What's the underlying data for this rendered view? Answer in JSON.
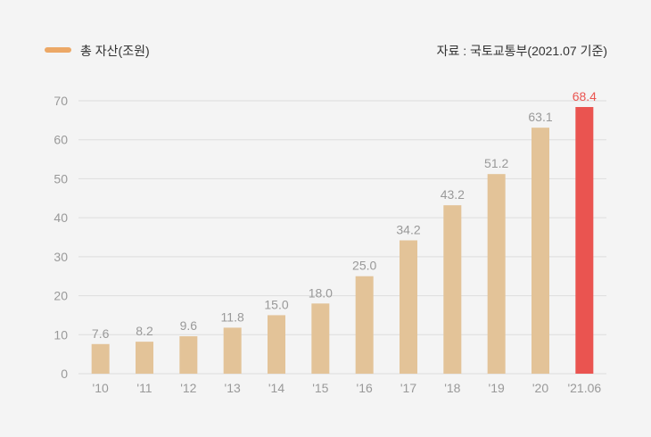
{
  "legend": {
    "label": "총 자산(조원)"
  },
  "source": "자료 : 국토교통부(2021.07 기준)",
  "colors": {
    "bar": "#e3c398",
    "highlight": "#ea5450",
    "legend": "#eca866",
    "grid": "#dddddd",
    "tick_text": "#999999",
    "data_label": "#999999",
    "highlight_label": "#ea5450"
  },
  "chart_data": {
    "type": "bar",
    "categories": [
      "'10",
      "'11",
      "'12",
      "'13",
      "'14",
      "'15",
      "'16",
      "'17",
      "'18",
      "'19",
      "'20",
      "'21.06"
    ],
    "values": [
      7.6,
      8.2,
      9.6,
      11.8,
      15.0,
      18.0,
      25.0,
      34.2,
      43.2,
      51.2,
      63.1,
      68.4
    ],
    "value_labels": [
      "7.6",
      "8.2",
      "9.6",
      "11.8",
      "15.0",
      "18.0",
      "25.0",
      "34.2",
      "43.2",
      "51.2",
      "63.1",
      "68.4"
    ],
    "series_name": "총 자산(조원)",
    "ylim": [
      0,
      70
    ],
    "yticks": [
      0,
      10,
      20,
      30,
      40,
      50,
      60,
      70
    ],
    "grid": true,
    "legend_position": "top-left",
    "highlight_index": 11
  }
}
